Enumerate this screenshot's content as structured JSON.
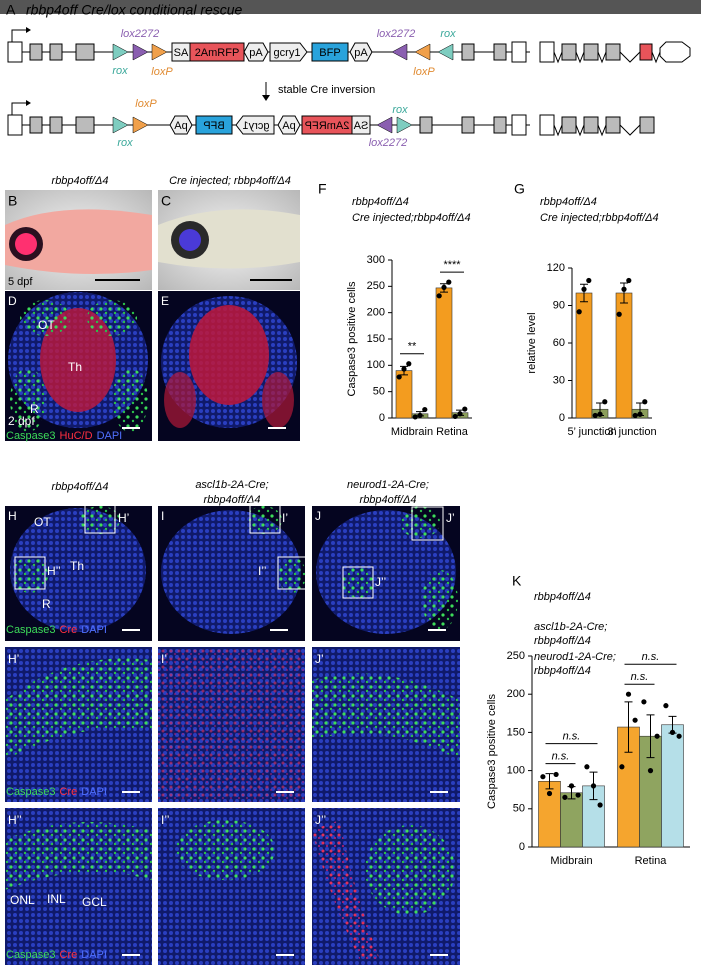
{
  "figure": {
    "A": {
      "label": "A",
      "title": "rbbp4off Cre/lox conditional rescue",
      "top": [
        "lox2272",
        "rox",
        "loxP",
        "SA",
        "2AmRFP",
        "pA",
        "gcry1",
        "BFP",
        "pA",
        "lox2272",
        "loxP",
        "rox"
      ],
      "arrow": "stable Cre inversion",
      "bottom": [
        "loxP",
        "rox",
        "pA",
        "BFP",
        "gcry1",
        "pA",
        "2AmRFP",
        "SA",
        "rox",
        "lox2272"
      ]
    },
    "B": {
      "label": "B",
      "header": "rbbp4off/Δ4",
      "stage": "5 dpf"
    },
    "C": {
      "label": "C",
      "header": "Cre injected; rbbp4off/Δ4"
    },
    "D": {
      "label": "D",
      "regions": [
        "OT",
        "Th",
        "R"
      ],
      "stage": "2 dpf",
      "stain": [
        "Caspase3",
        "HuC/D",
        "DAPI"
      ]
    },
    "E": {
      "label": "E"
    },
    "F": {
      "label": "F"
    },
    "G": {
      "label": "G"
    },
    "H": {
      "label": "H",
      "header": "rbbp4off/Δ4",
      "regions": [
        "OT",
        "Th",
        "R"
      ],
      "insets": [
        "H’",
        "H’’"
      ],
      "stain": [
        "Caspase3",
        "Cre",
        "DAPI"
      ]
    },
    "I": {
      "label": "I",
      "header": [
        "ascl1b-2A-Cre;",
        "rbbp4off/Δ4"
      ],
      "insets": [
        "I’",
        "I’’"
      ]
    },
    "J": {
      "label": "J",
      "header": [
        "neurod1-2A-Cre;",
        "rbbp4off/Δ4"
      ],
      "insets": [
        "J’",
        "J’’"
      ]
    },
    "layers": [
      "ONL",
      "INL",
      "GCL"
    ],
    "K": {
      "label": "K"
    }
  },
  "chart_data": [
    {
      "type": "bar",
      "categories": [
        "Midbrain",
        "Retina"
      ],
      "ylabel": "Caspase3 positive  cells",
      "ylim": [
        0,
        300
      ],
      "yticks": [
        0,
        50,
        100,
        150,
        200,
        250,
        300
      ],
      "series": [
        {
          "name": "rbbp4off/Δ4",
          "color": "#f39c1f",
          "values": [
            90,
            247
          ],
          "errors": [
            8,
            8
          ],
          "points": [
            [
              78,
              93,
              103
            ],
            [
              232,
              248,
              258
            ]
          ]
        },
        {
          "name": "Cre injected;rbbp4off/Δ4",
          "color": "#8b9d5a",
          "values": [
            8,
            10
          ],
          "errors": [
            4,
            5
          ],
          "points": [
            [
              2,
              5,
              16
            ],
            [
              3,
              8,
              17
            ]
          ]
        }
      ],
      "annotations": [
        {
          "text": "**",
          "category": 0,
          "series": [
            0,
            1
          ]
        },
        {
          "text": "****",
          "category": 1,
          "series": [
            0,
            1
          ]
        }
      ]
    },
    {
      "type": "bar",
      "categories": [
        "5’ junction",
        "3’ junction"
      ],
      "ylabel": "relative level",
      "ylim": [
        0,
        120
      ],
      "yticks": [
        0,
        30,
        60,
        90,
        120
      ],
      "series": [
        {
          "name": "rbbp4off/Δ4",
          "color": "#f39c1f",
          "values": [
            100,
            100
          ],
          "errors": [
            7,
            8
          ],
          "points": [
            [
              85,
              103,
              110
            ],
            [
              83,
              103,
              110
            ]
          ]
        },
        {
          "name": "Cre injected;rbbp4off/Δ4",
          "color": "#8b9d5a",
          "values": [
            7,
            7
          ],
          "errors": [
            5,
            5
          ],
          "points": [
            [
              2,
              3,
              13
            ],
            [
              2,
              3,
              13
            ]
          ]
        }
      ]
    },
    {
      "type": "bar",
      "categories": [
        "Midbrain",
        "Retina"
      ],
      "ylabel": "Caspase3 positive  cells",
      "ylim": [
        0,
        250
      ],
      "yticks": [
        0,
        50,
        100,
        150,
        200,
        250
      ],
      "series": [
        {
          "name": "rbbp4off/Δ4",
          "color": "#f5a52e",
          "values": [
            86,
            157
          ],
          "errors": [
            10,
            33
          ],
          "points": [
            [
              92,
              70,
              95
            ],
            [
              105,
              200,
              166
            ]
          ]
        },
        {
          "name": "ascl1b-2A-Cre;\nrbbp4off/Δ4",
          "color": "#8fa460",
          "values": [
            71,
            145
          ],
          "errors": [
            8,
            28
          ],
          "points": [
            [
              65,
              80,
              68
            ],
            [
              190,
              100,
              145
            ]
          ]
        },
        {
          "name": "neurod1-2A-Cre;\nrbbp4off/Δ4",
          "color": "#b5dfe8",
          "values": [
            80,
            160
          ],
          "errors": [
            18,
            11
          ],
          "points": [
            [
              105,
              80,
              55
            ],
            [
              185,
              150,
              145
            ]
          ]
        }
      ],
      "annotations": [
        {
          "text": "n.s.",
          "category": 0,
          "series": [
            0,
            1
          ]
        },
        {
          "text": "n.s.",
          "category": 0,
          "series": [
            0,
            2
          ]
        },
        {
          "text": "n.s.",
          "category": 1,
          "series": [
            0,
            1
          ]
        },
        {
          "text": "n.s.",
          "category": 1,
          "series": [
            0,
            2
          ]
        }
      ]
    }
  ]
}
